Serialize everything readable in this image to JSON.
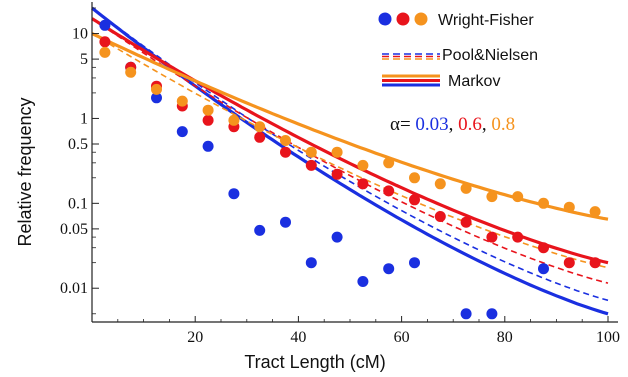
{
  "chart_data": {
    "type": "scatter",
    "xlabel": "Tract Length (cM)",
    "ylabel": "Relative frequency",
    "xlim": [
      0,
      100
    ],
    "ylim": [
      0.004,
      20
    ],
    "yscale": "log",
    "x_ticks": [
      20,
      40,
      60,
      80,
      100
    ],
    "y_ticks": [
      0.01,
      0.05,
      0.1,
      0.5,
      1,
      5,
      10
    ],
    "y_tick_labels": [
      "0.01",
      "0.05",
      "0.1",
      "0.5",
      "1",
      "5",
      "10"
    ],
    "grid": false,
    "legend": {
      "placement": "top-right",
      "entries": [
        {
          "label": "Wright-Fisher",
          "style": "points"
        },
        {
          "label": "Pool&Nielsen",
          "style": "dashed"
        },
        {
          "label": "Markov",
          "style": "solid"
        }
      ],
      "alpha_prefix": "α=",
      "alpha_values": [
        "0.03",
        "0.6",
        "0.8"
      ]
    },
    "series": [
      {
        "alpha": "0.03",
        "color": "#1a2fe0",
        "points": {
          "x": [
            2.5,
            7.5,
            12.5,
            17.5,
            22.5,
            27.5,
            32.5,
            37.5,
            42.5,
            47.5,
            52.5,
            57.5,
            62.5,
            72.5,
            77.5,
            87.5
          ],
          "y": [
            12.5,
            4.0,
            1.75,
            0.7,
            0.47,
            0.13,
            0.048,
            0.06,
            0.02,
            0.04,
            0.012,
            0.017,
            0.02,
            0.005,
            0.005,
            0.017
          ]
        },
        "markov": {
          "y0": 20.0,
          "y100": 0.005
        },
        "pool_nielsen": {
          "y0": 20.0,
          "y100": 0.0072
        }
      },
      {
        "alpha": "0.6",
        "color": "#e8141c",
        "points": {
          "x": [
            2.5,
            7.5,
            12.5,
            17.5,
            22.5,
            27.5,
            32.5,
            37.5,
            42.5,
            47.5,
            52.5,
            57.5,
            62.5,
            67.5,
            72.5,
            77.5,
            82.5,
            87.5,
            92.5,
            97.5
          ],
          "y": [
            8.0,
            4.0,
            2.4,
            1.4,
            0.95,
            0.8,
            0.6,
            0.4,
            0.28,
            0.22,
            0.17,
            0.14,
            0.11,
            0.07,
            0.06,
            0.04,
            0.04,
            0.03,
            0.02,
            0.02
          ]
        },
        "markov": {
          "y0": 15.0,
          "y100": 0.02
        },
        "pool_nielsen": {
          "y0": 15.0,
          "y100": 0.0115
        }
      },
      {
        "alpha": "0.8",
        "color": "#f5931e",
        "points": {
          "x": [
            2.5,
            7.5,
            12.5,
            17.5,
            22.5,
            27.5,
            32.5,
            37.5,
            42.5,
            47.5,
            52.5,
            57.5,
            62.5,
            67.5,
            72.5,
            77.5,
            82.5,
            87.5,
            92.5,
            97.5
          ],
          "y": [
            6.0,
            3.5,
            2.2,
            1.6,
            1.25,
            0.95,
            0.8,
            0.55,
            0.4,
            0.4,
            0.28,
            0.3,
            0.2,
            0.17,
            0.15,
            0.12,
            0.12,
            0.1,
            0.09,
            0.08
          ]
        },
        "markov": {
          "y0": 10.0,
          "y100": 0.065
        },
        "pool_nielsen": {
          "y0": 10.0,
          "y100": 0.0175
        }
      }
    ]
  }
}
